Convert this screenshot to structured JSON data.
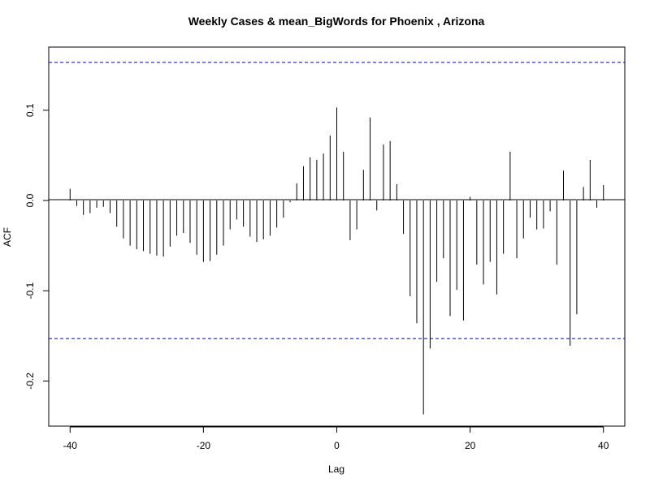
{
  "chart_data": {
    "type": "bar",
    "title": "Weekly Cases & mean_BigWords for Phoenix , Arizona",
    "xlabel": "Lag",
    "ylabel": "ACF",
    "xlim": [
      -43.2,
      43.2
    ],
    "ylim": [
      -0.25,
      0.17
    ],
    "x_ticks": [
      -40,
      -20,
      0,
      20,
      40
    ],
    "x_tick_labels": [
      "-40",
      "-20",
      "0",
      "20",
      "40"
    ],
    "y_ticks": [
      -0.2,
      -0.1,
      0.0,
      0.1
    ],
    "y_tick_labels": [
      "-0.2",
      "-0.1",
      "0.0",
      "0.1"
    ],
    "confidence_bound": 0.153,
    "zero_line": true,
    "grid": false,
    "legend": "none",
    "colors": {
      "bars": "#000000",
      "confidence": "#0000CC",
      "axes": "#000000"
    },
    "lags": [
      -40,
      -39,
      -38,
      -37,
      -36,
      -35,
      -34,
      -33,
      -32,
      -31,
      -30,
      -29,
      -28,
      -27,
      -26,
      -25,
      -24,
      -23,
      -22,
      -21,
      -20,
      -19,
      -18,
      -17,
      -16,
      -15,
      -14,
      -13,
      -12,
      -11,
      -10,
      -9,
      -8,
      -7,
      -6,
      -5,
      -4,
      -3,
      -2,
      -1,
      0,
      1,
      2,
      3,
      4,
      5,
      6,
      7,
      8,
      9,
      10,
      11,
      12,
      13,
      14,
      15,
      16,
      17,
      18,
      19,
      20,
      21,
      22,
      23,
      24,
      25,
      26,
      27,
      28,
      29,
      30,
      31,
      32,
      33,
      34,
      35,
      36,
      37,
      38,
      39,
      40
    ],
    "values": [
      0.013,
      -0.006,
      -0.016,
      -0.014,
      -0.008,
      -0.007,
      -0.014,
      -0.029,
      -0.042,
      -0.05,
      -0.054,
      -0.056,
      -0.059,
      -0.061,
      -0.062,
      -0.051,
      -0.039,
      -0.036,
      -0.047,
      -0.06,
      -0.068,
      -0.067,
      -0.06,
      -0.05,
      -0.032,
      -0.021,
      -0.029,
      -0.04,
      -0.046,
      -0.043,
      -0.039,
      -0.03,
      -0.019,
      -0.002,
      0.019,
      0.038,
      0.048,
      0.045,
      0.052,
      0.072,
      0.103,
      0.054,
      -0.044,
      -0.032,
      0.034,
      0.092,
      -0.011,
      0.062,
      0.066,
      0.018,
      -0.037,
      -0.106,
      -0.136,
      -0.237,
      -0.164,
      -0.09,
      -0.064,
      -0.128,
      -0.099,
      -0.133,
      0.004,
      -0.071,
      -0.093,
      -0.068,
      -0.104,
      -0.059,
      0.054,
      -0.064,
      -0.042,
      -0.019,
      -0.032,
      -0.031,
      -0.012,
      -0.071,
      0.033,
      -0.161,
      -0.126,
      0.015,
      0.045,
      -0.008,
      0.017
    ]
  }
}
